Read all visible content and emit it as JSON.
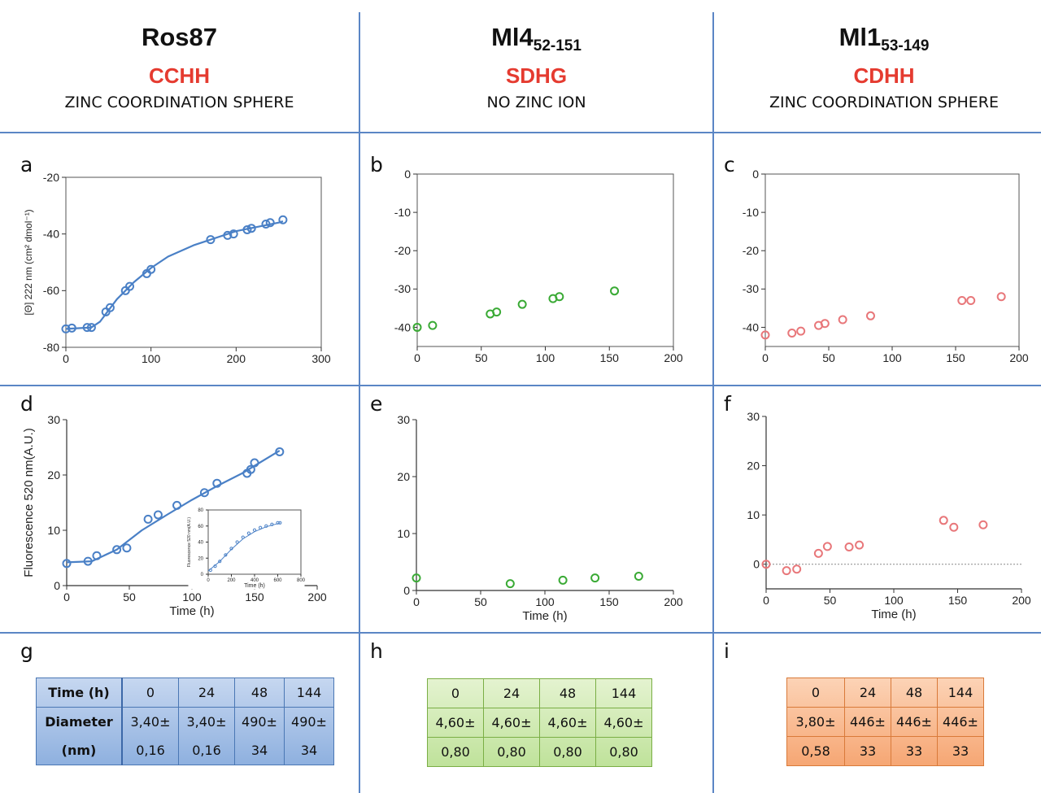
{
  "headers": [
    {
      "title": "Ros87",
      "title_sub": "",
      "motif": "CCHH",
      "subtitle": "ZINC COORDINATION SPHERE"
    },
    {
      "title": "Ml4",
      "title_sub": "52-151",
      "motif": "SDHG",
      "subtitle": "NO ZINC ION"
    },
    {
      "title": "Ml1",
      "title_sub": "53-149",
      "motif": "CDHH",
      "subtitle": "ZINC COORDINATION SPHERE"
    }
  ],
  "panel_labels": [
    "a",
    "b",
    "c",
    "d",
    "e",
    "f",
    "g",
    "h",
    "i"
  ],
  "colors": {
    "blue": "#4a80c6",
    "green": "#3aaa35",
    "red": "#e8777a",
    "divider": "#5b86c5"
  },
  "chart_data": [
    {
      "id": "a",
      "type": "scatter",
      "color": "#4a80c6",
      "fit": true,
      "title": "",
      "xlabel": "",
      "ylabel": "[Θ] 222 nm (cm² dmol⁻¹)",
      "xlim": [
        0,
        300
      ],
      "ylim": [
        -80,
        -20
      ],
      "xticks": [
        0,
        100,
        200,
        300
      ],
      "yticks": [
        -20,
        -40,
        -60,
        -80
      ],
      "x": [
        0,
        7,
        25,
        30,
        47,
        52,
        70,
        75,
        95,
        100,
        170,
        190,
        197,
        213,
        218,
        235,
        240,
        255
      ],
      "y": [
        -73.5,
        -73.2,
        -73,
        -73,
        -67.5,
        -66,
        -60,
        -58.5,
        -54,
        -52.5,
        -42,
        -40.5,
        -40,
        -38.5,
        -38,
        -36.5,
        -36,
        -35
      ],
      "fit_x": [
        0,
        30,
        40,
        50,
        60,
        80,
        100,
        120,
        150,
        200,
        250,
        255
      ],
      "fit_y": [
        -73.5,
        -73,
        -71,
        -67,
        -63,
        -57,
        -52,
        -48,
        -44,
        -39,
        -36,
        -35.5
      ]
    },
    {
      "id": "b",
      "type": "scatter",
      "color": "#3aaa35",
      "fit": false,
      "title": "",
      "xlabel": "",
      "ylabel": "",
      "xlim": [
        0,
        200
      ],
      "ylim": [
        -45,
        0
      ],
      "xticks": [
        0,
        50,
        100,
        150,
        200
      ],
      "yticks": [
        0,
        -10,
        -20,
        -30,
        -40
      ],
      "x": [
        0,
        12,
        57,
        62,
        82,
        106,
        111,
        154
      ],
      "y": [
        -40,
        -39.5,
        -36.5,
        -36,
        -34,
        -32.5,
        -32,
        -30.5
      ]
    },
    {
      "id": "c",
      "type": "scatter",
      "color": "#e8777a",
      "fit": false,
      "title": "",
      "xlabel": "",
      "ylabel": "",
      "xlim": [
        0,
        200
      ],
      "ylim": [
        -45,
        0
      ],
      "xticks": [
        0,
        50,
        100,
        150,
        200
      ],
      "yticks": [
        0,
        -10,
        -20,
        -30,
        -40
      ],
      "x": [
        0,
        21,
        28,
        42,
        47,
        61,
        83,
        155,
        162,
        186
      ],
      "y": [
        -42,
        -41.5,
        -41,
        -39.5,
        -39,
        -38,
        -37,
        -33,
        -33,
        -32
      ]
    },
    {
      "id": "d",
      "type": "scatter",
      "color": "#4a80c6",
      "fit": true,
      "title": "",
      "xlabel": "Time (h)",
      "ylabel": "Fluorescence 520 nm(A.U.)",
      "xlim": [
        0,
        200
      ],
      "ylim": [
        0,
        30
      ],
      "xticks": [
        0,
        50,
        100,
        150,
        200
      ],
      "yticks": [
        0,
        10,
        20,
        30
      ],
      "x": [
        0,
        17,
        24,
        40,
        48,
        65,
        73,
        88,
        110,
        120,
        144,
        147,
        150,
        170
      ],
      "y": [
        4,
        4.4,
        5.4,
        6.5,
        6.8,
        12,
        12.8,
        14.5,
        16.8,
        18.5,
        20.3,
        21,
        22.2,
        24.2
      ],
      "fit_x": [
        0,
        20,
        40,
        60,
        80,
        100,
        120,
        140,
        170
      ],
      "fit_y": [
        4.2,
        4.4,
        6.5,
        10,
        12.8,
        15.5,
        18,
        20.3,
        24.4
      ],
      "inset": {
        "xlim": [
          0,
          800
        ],
        "ylim": [
          0,
          80
        ],
        "xticks": [
          0,
          200,
          400,
          600,
          800
        ],
        "yticks": [
          0,
          20,
          40,
          60,
          80
        ],
        "xlabel": "Time (h)",
        "ylabel": "Fluorescence 520 nm(A.U.)",
        "x": [
          20,
          60,
          100,
          150,
          200,
          250,
          300,
          350,
          400,
          450,
          500,
          550,
          600,
          620
        ],
        "y": [
          5,
          10,
          16,
          24,
          32,
          40,
          46,
          51,
          55,
          58,
          60,
          62,
          64,
          64
        ],
        "fit_x": [
          0,
          100,
          200,
          300,
          400,
          500,
          600,
          620
        ],
        "fit_y": [
          4,
          16,
          31,
          44,
          53,
          59,
          63,
          64
        ]
      }
    },
    {
      "id": "e",
      "type": "scatter",
      "color": "#3aaa35",
      "fit": false,
      "title": "",
      "xlabel": "Time (h)",
      "ylabel": "",
      "xlim": [
        0,
        200
      ],
      "ylim": [
        0,
        30
      ],
      "xticks": [
        0,
        50,
        100,
        150,
        200
      ],
      "yticks": [
        0,
        10,
        20,
        30
      ],
      "x": [
        0,
        73,
        114,
        139,
        173
      ],
      "y": [
        2.2,
        1.2,
        1.8,
        2.2,
        2.5
      ]
    },
    {
      "id": "f",
      "type": "scatter",
      "color": "#e8777a",
      "fit": false,
      "zero_line": true,
      "title": "",
      "xlabel": "Time (h)",
      "ylabel": "",
      "xlim": [
        0,
        200
      ],
      "ylim": [
        -5,
        30
      ],
      "xticks": [
        0,
        50,
        100,
        150,
        200
      ],
      "yticks": [
        0,
        10,
        20,
        30
      ],
      "x": [
        0,
        16,
        24,
        41,
        48,
        65,
        73,
        139,
        147,
        170
      ],
      "y": [
        0,
        -1.3,
        -1,
        2.2,
        3.6,
        3.5,
        3.9,
        8.9,
        7.5,
        8
      ]
    }
  ],
  "tables": {
    "g": {
      "rows": [
        [
          "Time (h)",
          "0",
          "24",
          "48",
          "144"
        ],
        [
          "Diameter",
          "3,40±",
          "3,40±",
          "490±",
          "490±"
        ],
        [
          "(nm)",
          "0,16",
          "0,16",
          "34",
          "34"
        ]
      ]
    },
    "h": {
      "rows": [
        [
          "0",
          "24",
          "48",
          "144"
        ],
        [
          "4,60±",
          "4,60±",
          "4,60±",
          "4,60±"
        ],
        [
          "0,80",
          "0,80",
          "0,80",
          "0,80"
        ]
      ]
    },
    "i": {
      "rows": [
        [
          "0",
          "24",
          "48",
          "144"
        ],
        [
          "3,80±",
          "446±",
          "446±",
          "446±"
        ],
        [
          "0,58",
          "33",
          "33",
          "33"
        ]
      ]
    }
  }
}
